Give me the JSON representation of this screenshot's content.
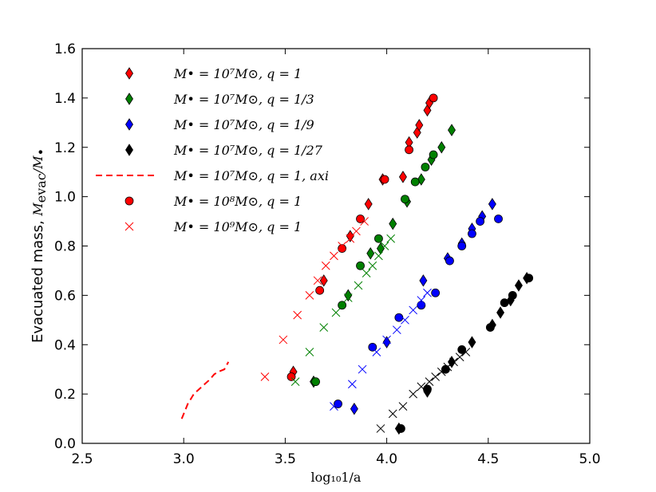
{
  "chart_data": {
    "type": "scatter",
    "title": "",
    "xlabel": "log₁₀1/a",
    "ylabel": "Evacuated mass, M_evac/M_•",
    "ylabel_prefix": "Evacuated mass, ",
    "ylabel_math": "M",
    "ylabel_sub": "evac",
    "ylabel_slash": "/M",
    "ylabel_bullet": "•",
    "xlim": [
      2.5,
      5.0
    ],
    "ylim": [
      0.0,
      1.6
    ],
    "xticks": [
      2.5,
      3.0,
      3.5,
      4.0,
      4.5,
      5.0
    ],
    "xtick_labels": [
      "2.5",
      "3.0",
      "3.5",
      "4.0",
      "4.5",
      "5.0"
    ],
    "yticks": [
      0.0,
      0.2,
      0.4,
      0.6,
      0.8,
      1.0,
      1.2,
      1.4,
      1.6
    ],
    "ytick_labels": [
      "0.0",
      "0.2",
      "0.4",
      "0.6",
      "0.8",
      "1.0",
      "1.2",
      "1.4",
      "1.6"
    ],
    "grid": false,
    "legend_position": "top-left",
    "series": [
      {
        "name": "M• = 10^7 M⊙, q = 1",
        "label": "M• = 10⁷M⊙, q = 1",
        "marker": "diamond",
        "color": "#ff0000",
        "x": [
          3.54,
          3.69,
          3.82,
          3.91,
          3.98,
          4.08,
          4.11,
          4.15,
          4.16,
          4.2,
          4.21
        ],
        "y": [
          0.29,
          0.66,
          0.84,
          0.97,
          1.07,
          1.08,
          1.22,
          1.26,
          1.29,
          1.35,
          1.38
        ]
      },
      {
        "name": "M• = 10^7 M⊙, q = 1/3",
        "label": "M• = 10⁷M⊙, q = 1/3",
        "marker": "diamond",
        "color": "#008000",
        "x": [
          3.64,
          3.81,
          3.92,
          3.97,
          4.03,
          4.1,
          4.17,
          4.22,
          4.27,
          4.32
        ],
        "y": [
          0.25,
          0.6,
          0.77,
          0.79,
          0.89,
          0.98,
          1.07,
          1.15,
          1.2,
          1.27
        ]
      },
      {
        "name": "M• = 10^7 M⊙, q = 1/9",
        "label": "M• = 10⁷M⊙, q = 1/9",
        "marker": "diamond",
        "color": "#0000ff",
        "x": [
          3.84,
          4.0,
          4.18,
          4.3,
          4.37,
          4.42,
          4.47,
          4.52
        ],
        "y": [
          0.14,
          0.41,
          0.66,
          0.75,
          0.81,
          0.87,
          0.92,
          0.97
        ]
      },
      {
        "name": "M• = 10^7 M⊙, q = 1/27",
        "label": "M• = 10⁷M⊙, q = 1/27",
        "marker": "diamond",
        "color": "#000000",
        "x": [
          4.06,
          4.2,
          4.32,
          4.42,
          4.52,
          4.56,
          4.61,
          4.65,
          4.69
        ],
        "y": [
          0.06,
          0.21,
          0.33,
          0.41,
          0.48,
          0.53,
          0.58,
          0.64,
          0.67
        ]
      },
      {
        "name": "M• = 10^7 M⊙, q = 1, axi",
        "label": "M• = 10⁷M⊙, q = 1, axi",
        "marker": "dashed-line",
        "color": "#ff0000",
        "x": [
          2.99,
          3.02,
          3.05,
          3.09,
          3.13,
          3.15,
          3.17,
          3.2,
          3.22
        ],
        "y": [
          0.1,
          0.16,
          0.2,
          0.23,
          0.26,
          0.28,
          0.29,
          0.3,
          0.33
        ]
      },
      {
        "name": "M• = 10^8 M⊙, q = 1",
        "label": "M• = 10⁸M⊙, q = 1",
        "marker": "circle",
        "color": "#ff0000",
        "x": [
          3.53,
          3.67,
          3.78,
          3.87,
          3.99,
          4.11,
          4.23
        ],
        "y": [
          0.27,
          0.62,
          0.79,
          0.91,
          1.07,
          1.19,
          1.4
        ]
      },
      {
        "name": "M• = 10^9 M⊙, q = 1",
        "label": "M• = 10⁹M⊙, q = 1",
        "marker": "x",
        "color": "#ff0000",
        "x": [
          3.4,
          3.49,
          3.56,
          3.62,
          3.66,
          3.7,
          3.74,
          3.78,
          3.82,
          3.85,
          3.89
        ],
        "y": [
          0.27,
          0.42,
          0.52,
          0.6,
          0.66,
          0.72,
          0.76,
          0.8,
          0.83,
          0.86,
          0.9
        ]
      }
    ],
    "extra_points": [
      {
        "series": "green-circle",
        "color": "#008000",
        "marker": "circle",
        "x": [
          3.65,
          3.78,
          3.87,
          3.96,
          4.09,
          4.14,
          4.19,
          4.23
        ],
        "y": [
          0.25,
          0.56,
          0.72,
          0.83,
          0.99,
          1.06,
          1.12,
          1.17
        ]
      },
      {
        "series": "green-x",
        "color": "#008000",
        "marker": "x",
        "x": [
          3.55,
          3.62,
          3.69,
          3.75,
          3.81,
          3.86,
          3.9,
          3.93,
          3.96,
          3.99,
          4.02
        ],
        "y": [
          0.25,
          0.37,
          0.47,
          0.53,
          0.59,
          0.64,
          0.69,
          0.72,
          0.76,
          0.8,
          0.83
        ]
      },
      {
        "series": "blue-circle",
        "color": "#0000ff",
        "marker": "circle",
        "x": [
          3.76,
          3.93,
          4.06,
          4.17,
          4.24,
          4.31,
          4.37,
          4.42,
          4.46,
          4.55
        ],
        "y": [
          0.16,
          0.39,
          0.51,
          0.56,
          0.61,
          0.74,
          0.8,
          0.85,
          0.9,
          0.91
        ]
      },
      {
        "series": "blue-x",
        "color": "#0000ff",
        "marker": "x",
        "x": [
          3.74,
          3.83,
          3.88,
          3.95,
          4.0,
          4.05,
          4.09,
          4.13,
          4.17,
          4.2
        ],
        "y": [
          0.15,
          0.24,
          0.3,
          0.37,
          0.42,
          0.46,
          0.5,
          0.54,
          0.58,
          0.61
        ]
      },
      {
        "series": "black-circle",
        "color": "#000000",
        "marker": "circle",
        "x": [
          4.07,
          4.2,
          4.29,
          4.37,
          4.51,
          4.58,
          4.62,
          4.7
        ],
        "y": [
          0.06,
          0.22,
          0.3,
          0.38,
          0.47,
          0.57,
          0.6,
          0.67
        ]
      },
      {
        "series": "black-x",
        "color": "#000000",
        "marker": "x",
        "x": [
          3.97,
          4.03,
          4.08,
          4.13,
          4.17,
          4.21,
          4.24,
          4.27,
          4.3,
          4.33,
          4.36,
          4.39
        ],
        "y": [
          0.06,
          0.12,
          0.15,
          0.2,
          0.23,
          0.25,
          0.27,
          0.29,
          0.31,
          0.33,
          0.35,
          0.37
        ]
      }
    ]
  }
}
